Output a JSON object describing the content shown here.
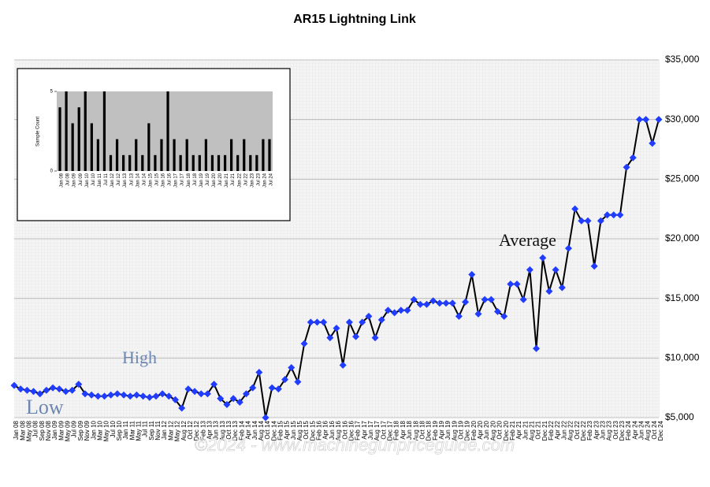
{
  "chart_data": [
    {
      "type": "line",
      "title": "AR15 Lightning Link",
      "categories": [
        "Jan 08",
        "Mar 08",
        "May 08",
        "Jul 08",
        "Sep 08",
        "Nov 08",
        "Jan 09",
        "Mar 09",
        "May 09",
        "Jul 09",
        "Sep 09",
        "Nov 09",
        "Jan 10",
        "Mar 10",
        "May 10",
        "Jul 10",
        "Sep 10",
        "Jan 11",
        "Mar 11",
        "May 11",
        "Jul 11",
        "Sep 11",
        "Nov 11",
        "Jan 12",
        "Mar 12",
        "May 12",
        "Aug 12",
        "Oct 12",
        "Dec 12",
        "Feb 13",
        "Apr 13",
        "Jun 13",
        "Aug 13",
        "Oct 13",
        "Dec 13",
        "Feb 14",
        "Apr 14",
        "Jun 14",
        "Aug 14",
        "Oct 14",
        "Dec 14",
        "Feb 15",
        "Apr 15",
        "Jun 15",
        "Aug 15",
        "Oct 15",
        "Dec 15",
        "Feb 16",
        "Apr 16",
        "Jun 16",
        "Aug 16",
        "Oct 16",
        "Dec 16",
        "Feb 17",
        "Apr 17",
        "Jun 17",
        "Aug 17",
        "Oct 17",
        "Dec 17",
        "Feb 18",
        "Apr 18",
        "Jun 18",
        "Aug 18",
        "Oct 18",
        "Dec 18",
        "Feb 19",
        "Apr 19",
        "Jun 19",
        "Aug 19",
        "Oct 19",
        "Dec 19",
        "Feb 20",
        "Apr 20",
        "Jun 20",
        "Aug 20",
        "Oct 20",
        "Dec 20",
        "Feb 21",
        "Apr 21",
        "Jun 21",
        "Aug 21",
        "Oct 21",
        "Dec 21",
        "Feb 22",
        "Apr 22",
        "Jun 22",
        "Aug 22",
        "Oct 22",
        "Dec 22",
        "Feb 23",
        "Apr 23",
        "Jun 23",
        "Aug 23",
        "Oct 23",
        "Dec 23",
        "Feb 24",
        "Apr 24",
        "Jun 24",
        "Aug 24",
        "Oct 24",
        "Dec 24"
      ],
      "series": [
        {
          "name": "Average",
          "color": "#1f3cff",
          "line_color": "#000000",
          "values": [
            7700,
            7400,
            7300,
            7200,
            7000,
            7300,
            7500,
            7400,
            7200,
            7300,
            7800,
            7000,
            6900,
            6800,
            6800,
            6900,
            7000,
            6900,
            6800,
            6900,
            6800,
            6700,
            6800,
            7000,
            6800,
            6500,
            5800,
            7400,
            7200,
            7000,
            7000,
            7800,
            6600,
            6100,
            6600,
            6300,
            7000,
            7500,
            8800,
            5000,
            7500,
            7400,
            8200,
            9200,
            8000,
            11200,
            13000,
            13000,
            13000,
            11700,
            12500,
            9400,
            13000,
            11800,
            13000,
            13500,
            11700,
            13200,
            14000,
            13800,
            14000,
            14000,
            14900,
            14500,
            14500,
            14800,
            14600,
            14600,
            14600,
            13500,
            14700,
            17000,
            13700,
            14900,
            14900,
            13900,
            13500,
            16200,
            16200,
            14900,
            17400,
            10800,
            18400,
            15600,
            17400,
            15900,
            19200,
            22500,
            21500,
            21500,
            17700,
            21500,
            22000,
            22000,
            22000,
            26000,
            26800,
            30000,
            30000,
            28000,
            30000
          ]
        }
      ],
      "ylim": [
        5000,
        35000
      ],
      "yticks": [
        {
          "value": 5000,
          "label": "$5,000"
        },
        {
          "value": 10000,
          "label": "$10,000"
        },
        {
          "value": 15000,
          "label": "$15,000"
        },
        {
          "value": 20000,
          "label": "$20,000"
        },
        {
          "value": 25000,
          "label": "$25,000"
        },
        {
          "value": 30000,
          "label": "$30,000"
        },
        {
          "value": 35000,
          "label": "$35,000"
        }
      ],
      "grid": true,
      "annotations": [
        "High",
        "Low",
        "Average",
        "©2024 - www.machinegunpriceguide.com"
      ]
    },
    {
      "type": "bar",
      "ylabel": "Sample Count",
      "color": "#000000",
      "categories": [
        "Jan 08",
        "Jul 08",
        "Jan 09",
        "Jul 09",
        "Jan 10",
        "Jul 10",
        "Jan 11",
        "Jul 11",
        "Jan 12",
        "Jul 12",
        "Jan 13",
        "Jul 13",
        "Jan 14",
        "Jul 14",
        "Jan 15",
        "Jul 15",
        "Jan 16",
        "Jul 16",
        "Jan 17",
        "Jul 17",
        "Jan 18",
        "Jul 18",
        "Jan 19",
        "Jul 19",
        "Jan 20",
        "Jul 20",
        "Jan 21",
        "Jul 21",
        "Jan 22",
        "Jul 22",
        "Jan 23",
        "Jul 23",
        "Jan 24",
        "Jul 24"
      ],
      "values": [
        4,
        5,
        3,
        4,
        5,
        3,
        2,
        5,
        1,
        2,
        1,
        1,
        2,
        1,
        3,
        1,
        2,
        5,
        2,
        1,
        2,
        1,
        1,
        2,
        1,
        1,
        1,
        2,
        1,
        2,
        1,
        1,
        2,
        2
      ],
      "ylim": [
        0,
        5
      ],
      "yticks": [
        0,
        5
      ]
    }
  ]
}
